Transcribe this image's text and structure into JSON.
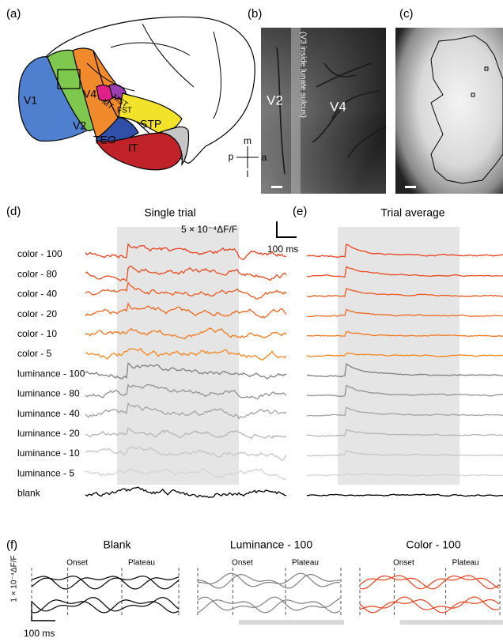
{
  "panel_a": {
    "label": "(a)",
    "areas": [
      "V1",
      "V4",
      "V2",
      "MST",
      "MT",
      "FST",
      "STP",
      "TEO",
      "IT"
    ]
  },
  "panel_b": {
    "label": "(b)",
    "area_labels": [
      "V2",
      "V4"
    ],
    "note": "(V3 inside lunate sulcus)",
    "compass": [
      "m",
      "l",
      "p",
      "a"
    ]
  },
  "panel_c": {
    "label": "(c)"
  },
  "panel_d": {
    "label": "(d)",
    "title": "Single trial",
    "scale_y": "5 × 10⁻⁴ΔF/F",
    "scale_x": "100 ms",
    "traces": [
      {
        "name": "color - 100",
        "color": "#e8421e"
      },
      {
        "name": "color - 80",
        "color": "#ea4c1f"
      },
      {
        "name": "color - 40",
        "color": "#ec5920"
      },
      {
        "name": "color - 20",
        "color": "#ef6820"
      },
      {
        "name": "color - 10",
        "color": "#f2781f"
      },
      {
        "name": "color - 5",
        "color": "#f4861f"
      },
      {
        "name": "luminance - 100",
        "color": "#7f7f7f"
      },
      {
        "name": "luminance - 80",
        "color": "#919191"
      },
      {
        "name": "luminance - 40",
        "color": "#a3a3a3"
      },
      {
        "name": "luminance - 20",
        "color": "#b5b5b5"
      },
      {
        "name": "luminance - 10",
        "color": "#c6c6c6"
      },
      {
        "name": "luminance - 5",
        "color": "#d4d4d4"
      },
      {
        "name": "blank",
        "color": "#000000"
      }
    ]
  },
  "panel_e": {
    "label": "(e)",
    "title": "Trial average"
  },
  "panel_f": {
    "label": "(f)",
    "scale_y": "1 × 10⁻⁴ΔF/F",
    "scale_x": "100 ms",
    "groups": [
      {
        "title": "Blank",
        "onset": "Onset",
        "plateau": "Plateau",
        "color": "#000000"
      },
      {
        "title": "Luminance - 100",
        "onset": "Onset",
        "plateau": "Plateau",
        "color": "#7f7f7f"
      },
      {
        "title": "Color - 100",
        "onset": "Onset",
        "plateau": "Plateau",
        "color": "#e8421e"
      }
    ]
  }
}
